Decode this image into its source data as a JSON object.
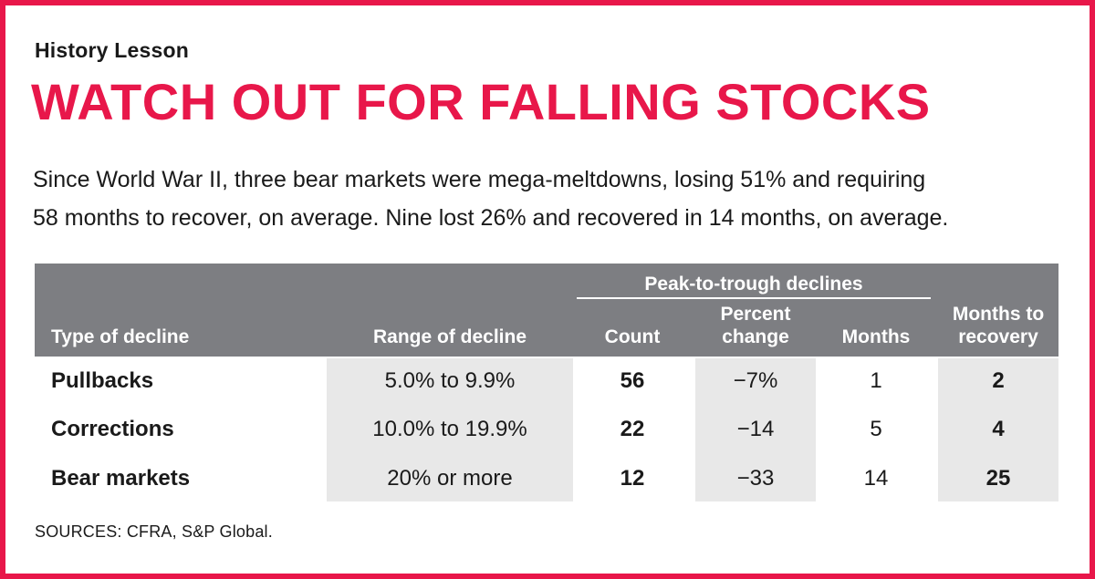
{
  "kicker": "History Lesson",
  "headline": "WATCH OUT FOR FALLING STOCKS",
  "dek": {
    "line1": "Since World War II, three bear markets were mega-meltdowns, losing 51% and requiring",
    "line2": "58 months to recover, on average. Nine lost 26% and recovered in 14 months, on average."
  },
  "table": {
    "headers": {
      "type": "Type of decline",
      "range": "Range of decline",
      "group": "Peak-to-trough declines",
      "count": "Count",
      "pct_line1": "Percent",
      "pct_line2": "change",
      "months": "Months",
      "rec_line1": "Months to",
      "rec_line2": "recovery"
    },
    "rows": [
      {
        "type": "Pullbacks",
        "range": "5.0% to 9.9%",
        "count": "56",
        "pct": "−7%",
        "months": "1",
        "recovery": "2"
      },
      {
        "type": "Corrections",
        "range": "10.0% to 19.9%",
        "count": "22",
        "pct": "−14",
        "months": "5",
        "recovery": "4"
      },
      {
        "type": "Bear markets",
        "range": "20% or more",
        "count": "12",
        "pct": "−33",
        "months": "14",
        "recovery": "25"
      }
    ]
  },
  "source": "SOURCES: CFRA, S&P Global.",
  "colors": {
    "accent": "#e8174a",
    "header_bg": "#7d7e82",
    "band_bg": "#e8e8e8"
  }
}
